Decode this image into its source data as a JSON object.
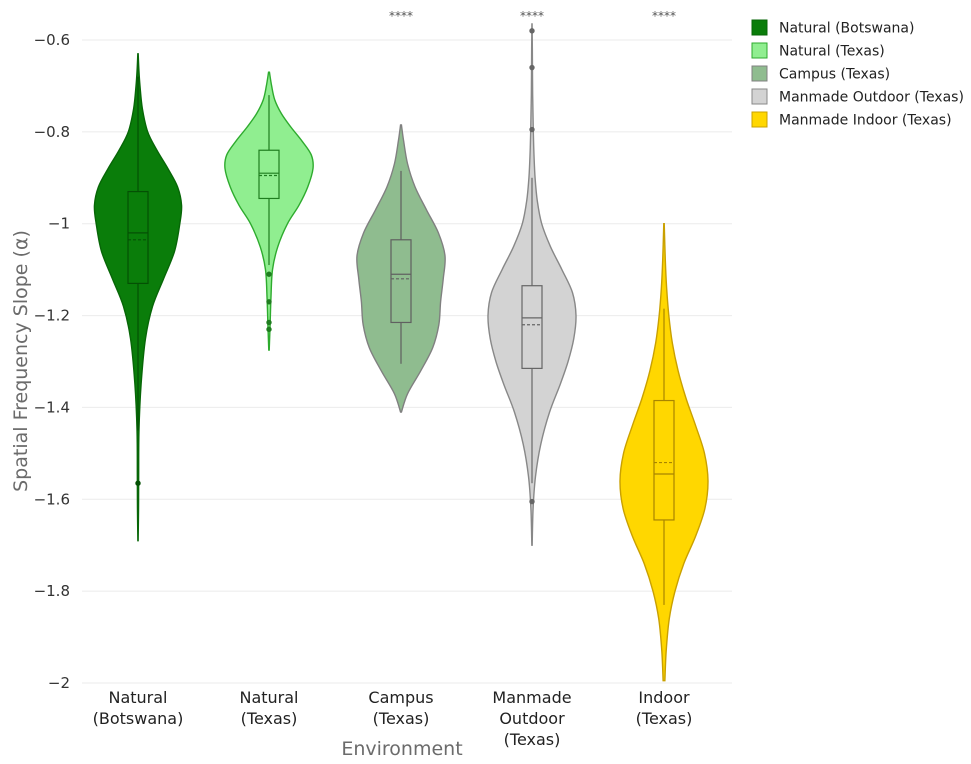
{
  "chart_data": {
    "type": "violin",
    "title": "",
    "xlabel": "Environment",
    "ylabel": "Spatial Frequency Slope (α)",
    "ylim": [
      -2,
      -0.55
    ],
    "yticks": [
      -0.6,
      -0.8,
      -1,
      -1.2,
      -1.4,
      -1.6,
      -1.8,
      -2
    ],
    "ytick_labels": [
      "−0.6",
      "−0.8",
      "−1",
      "−1.2",
      "−1.4",
      "−1.6",
      "−1.8",
      "−2"
    ],
    "grid": true,
    "legend_position": "top-right",
    "categories": [
      [
        "Natural",
        "(Botswana)"
      ],
      [
        "Natural",
        "(Texas)"
      ],
      [
        "Campus",
        "(Texas)"
      ],
      [
        "Manmade",
        "Outdoor",
        "(Texas)"
      ],
      [
        "Indoor",
        "(Texas)"
      ]
    ],
    "series": [
      {
        "name": "Natural (Botswana)",
        "fill": "#0a7d0a",
        "line": "#076607",
        "box_line": "#045004",
        "q1": -1.13,
        "median": -1.02,
        "mean": -1.035,
        "q3": -0.93,
        "whisker_low": -1.45,
        "whisker_high": -0.68,
        "outliers": [
          -1.565
        ],
        "significance": "",
        "density": [
          [
            -1.69,
            0.003
          ],
          [
            -1.62,
            0.012
          ],
          [
            -1.55,
            0.015
          ],
          [
            -1.45,
            0.022
          ],
          [
            -1.35,
            0.07
          ],
          [
            -1.25,
            0.17
          ],
          [
            -1.18,
            0.33
          ],
          [
            -1.12,
            0.58
          ],
          [
            -1.06,
            0.83
          ],
          [
            -1.0,
            0.95
          ],
          [
            -0.96,
            0.99
          ],
          [
            -0.92,
            0.9
          ],
          [
            -0.88,
            0.68
          ],
          [
            -0.84,
            0.43
          ],
          [
            -0.8,
            0.22
          ],
          [
            -0.75,
            0.1
          ],
          [
            -0.7,
            0.045
          ],
          [
            -0.665,
            0.02
          ],
          [
            -0.63,
            0.004
          ]
        ]
      },
      {
        "name": "Natural (Texas)",
        "fill": "#90ee90",
        "line": "#2eab2e",
        "box_line": "#1f7d1f",
        "q1": -0.945,
        "median": -0.89,
        "mean": -0.895,
        "q3": -0.84,
        "whisker_low": -1.09,
        "whisker_high": -0.72,
        "outliers": [
          -1.11,
          -1.17,
          -1.215,
          -1.23
        ],
        "significance": "",
        "density": [
          [
            -1.275,
            0.005
          ],
          [
            -1.22,
            0.025
          ],
          [
            -1.16,
            0.045
          ],
          [
            -1.1,
            0.08
          ],
          [
            -1.05,
            0.2
          ],
          [
            -1.0,
            0.42
          ],
          [
            -0.96,
            0.68
          ],
          [
            -0.92,
            0.88
          ],
          [
            -0.88,
            1.0
          ],
          [
            -0.85,
            0.96
          ],
          [
            -0.82,
            0.75
          ],
          [
            -0.79,
            0.5
          ],
          [
            -0.76,
            0.28
          ],
          [
            -0.73,
            0.13
          ],
          [
            -0.7,
            0.06
          ],
          [
            -0.67,
            0.01
          ]
        ]
      },
      {
        "name": "Campus (Texas)",
        "fill": "#8fbc8f",
        "line": "#808080",
        "box_line": "#606060",
        "q1": -1.215,
        "median": -1.11,
        "mean": -1.12,
        "q3": -1.035,
        "whisker_low": -1.305,
        "whisker_high": -0.885,
        "outliers": [],
        "significance": "****",
        "density": [
          [
            -1.41,
            0.01
          ],
          [
            -1.37,
            0.15
          ],
          [
            -1.32,
            0.45
          ],
          [
            -1.27,
            0.72
          ],
          [
            -1.22,
            0.86
          ],
          [
            -1.17,
            0.9
          ],
          [
            -1.12,
            0.96
          ],
          [
            -1.07,
            1.0
          ],
          [
            -1.02,
            0.85
          ],
          [
            -0.97,
            0.58
          ],
          [
            -0.92,
            0.32
          ],
          [
            -0.87,
            0.15
          ],
          [
            -0.82,
            0.06
          ],
          [
            -0.785,
            0.01
          ]
        ]
      },
      {
        "name": "Manmade Outdoor (Texas)",
        "fill": "#d3d3d3",
        "line": "#888888",
        "box_line": "#666666",
        "q1": -1.315,
        "median": -1.205,
        "mean": -1.22,
        "q3": -1.135,
        "whisker_low": -1.565,
        "whisker_high": -0.9,
        "outliers": [
          -0.58,
          -0.66,
          -0.795,
          -1.605
        ],
        "significance": "****",
        "density": [
          [
            -1.7,
            0.004
          ],
          [
            -1.62,
            0.025
          ],
          [
            -1.55,
            0.08
          ],
          [
            -1.48,
            0.2
          ],
          [
            -1.41,
            0.4
          ],
          [
            -1.35,
            0.64
          ],
          [
            -1.3,
            0.82
          ],
          [
            -1.25,
            0.95
          ],
          [
            -1.2,
            1.0
          ],
          [
            -1.15,
            0.92
          ],
          [
            -1.1,
            0.68
          ],
          [
            -1.05,
            0.42
          ],
          [
            -1.0,
            0.22
          ],
          [
            -0.95,
            0.12
          ],
          [
            -0.9,
            0.07
          ],
          [
            -0.85,
            0.045
          ],
          [
            -0.8,
            0.03
          ],
          [
            -0.72,
            0.015
          ],
          [
            -0.62,
            0.008
          ],
          [
            -0.565,
            0.002
          ]
        ]
      },
      {
        "name": "Manmade Indoor (Texas)",
        "fill": "#ffd700",
        "line": "#c9a000",
        "box_line": "#a88400",
        "q1": -1.645,
        "median": -1.545,
        "mean": -1.52,
        "q3": -1.385,
        "whisker_low": -1.83,
        "whisker_high": -1.185,
        "outliers": [],
        "significance": "****",
        "density": [
          [
            -1.995,
            0.02
          ],
          [
            -1.93,
            0.05
          ],
          [
            -1.86,
            0.12
          ],
          [
            -1.8,
            0.25
          ],
          [
            -1.74,
            0.45
          ],
          [
            -1.68,
            0.72
          ],
          [
            -1.62,
            0.93
          ],
          [
            -1.56,
            1.0
          ],
          [
            -1.5,
            0.92
          ],
          [
            -1.44,
            0.72
          ],
          [
            -1.38,
            0.5
          ],
          [
            -1.32,
            0.32
          ],
          [
            -1.26,
            0.19
          ],
          [
            -1.2,
            0.11
          ],
          [
            -1.14,
            0.06
          ],
          [
            -1.08,
            0.03
          ],
          [
            -1.0,
            0.005
          ]
        ]
      }
    ]
  }
}
